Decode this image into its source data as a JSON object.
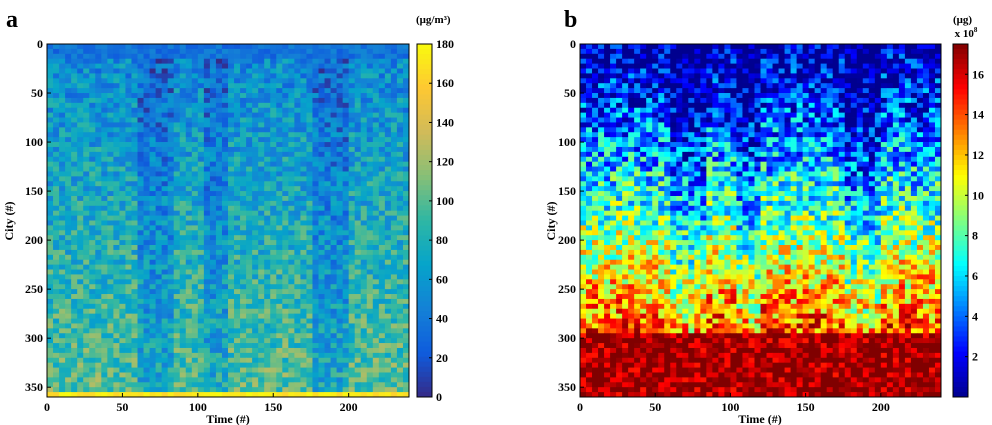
{
  "chart_data": [
    {
      "type": "heatmap",
      "panel_label": "a",
      "unit": "(μg/m³)",
      "xlabel": "Time (#)",
      "ylabel": "City (#)",
      "xlim": [
        0,
        240
      ],
      "ylim": [
        0,
        360
      ],
      "x_ticks": [
        0,
        50,
        100,
        150,
        200
      ],
      "y_ticks": [
        0,
        50,
        100,
        150,
        200,
        250,
        300,
        350
      ],
      "colorbar": {
        "min": 0,
        "max": 180,
        "ticks": [
          0,
          20,
          40,
          60,
          80,
          100,
          120,
          140,
          160,
          180
        ],
        "multiplier": ""
      },
      "colormap": "parula",
      "colors": [
        "#352a87",
        "#0f5cdd",
        "#1481d6",
        "#06a4ca",
        "#2eb7a4",
        "#87bf77",
        "#d1bb59",
        "#fec832",
        "#f9fb0e"
      ],
      "y_axis_reversed": true
    },
    {
      "type": "heatmap",
      "panel_label": "b",
      "unit": "(μg)",
      "xlabel": "Time (#)",
      "ylabel": "City (#)",
      "xlim": [
        0,
        240
      ],
      "ylim": [
        0,
        360
      ],
      "x_ticks": [
        0,
        50,
        100,
        150,
        200
      ],
      "y_ticks": [
        0,
        50,
        100,
        150,
        200,
        250,
        300,
        350
      ],
      "colorbar": {
        "min": 0,
        "max": 17.5,
        "ticks": [
          2,
          4,
          6,
          8,
          10,
          12,
          14,
          16
        ],
        "multiplier": "x 10",
        "exponent": "8"
      },
      "colormap": "jet",
      "colors": [
        "#00008f",
        "#0000ff",
        "#0080ff",
        "#00ffff",
        "#80ff80",
        "#ffff00",
        "#ff8000",
        "#ff0000",
        "#800000"
      ],
      "y_axis_reversed": true
    }
  ]
}
